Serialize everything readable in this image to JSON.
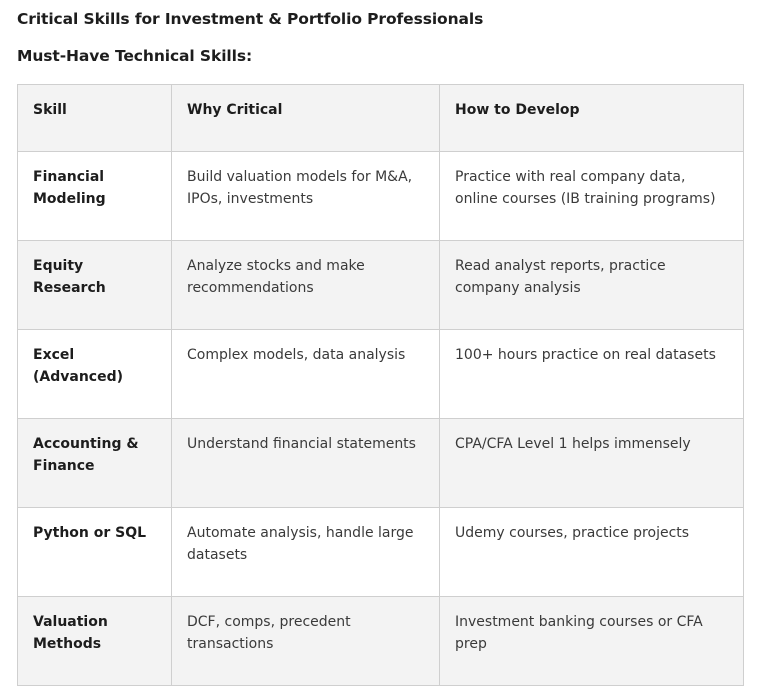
{
  "page": {
    "title": "Critical Skills for Investment & Portfolio Professionals",
    "section_heading": "Must-Have Technical Skills:"
  },
  "table": {
    "headers": [
      "Skill",
      "Why Critical",
      "How to Develop"
    ],
    "rows": [
      {
        "skill": "Financial Modeling",
        "why": "Build valuation models for M&A, IPOs, investments",
        "how": "Practice with real company data, online courses (IB training programs)"
      },
      {
        "skill": "Equity Research",
        "why": "Analyze stocks and make recommendations",
        "how": "Read analyst reports, practice company analysis"
      },
      {
        "skill": "Excel (Advanced)",
        "why": "Complex models, data analysis",
        "how": "100+ hours practice on real datasets"
      },
      {
        "skill": "Accounting & Finance",
        "why": "Understand financial statements",
        "how": "CPA/CFA Level 1 helps immensely"
      },
      {
        "skill": "Python or SQL",
        "why": "Automate analysis, handle large datasets",
        "how": "Udemy courses, practice projects"
      },
      {
        "skill": "Valuation Methods",
        "why": "DCF, comps, precedent transactions",
        "how": "Investment banking courses or CFA prep"
      }
    ]
  }
}
